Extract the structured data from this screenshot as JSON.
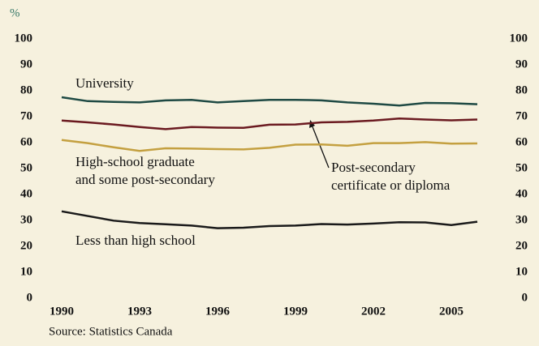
{
  "chart_data": {
    "type": "line",
    "y_label": "%",
    "source": "Source: Statistics Canada",
    "x": [
      1990,
      1991,
      1992,
      1993,
      1994,
      1995,
      1996,
      1997,
      1998,
      1999,
      2000,
      2001,
      2002,
      2003,
      2004,
      2005,
      2006
    ],
    "xlim": [
      1990,
      2006
    ],
    "xticks": [
      1990,
      1993,
      1996,
      1999,
      2002,
      2005
    ],
    "ylim": [
      0,
      100
    ],
    "yticks": [
      0,
      10,
      20,
      30,
      40,
      50,
      60,
      70,
      80,
      90,
      100
    ],
    "y2lim": [
      0,
      100
    ],
    "y2ticks": [
      0,
      10,
      20,
      30,
      40,
      50,
      60,
      70,
      80,
      90,
      100
    ],
    "grid": false,
    "series": [
      {
        "name": "University",
        "color": "#1f4a44",
        "values": [
          77.5,
          76,
          75.7,
          75.5,
          76.3,
          76.5,
          75.5,
          76,
          76.5,
          76.5,
          76.3,
          75.5,
          75,
          74.3,
          75.3,
          75.2,
          74.8
        ]
      },
      {
        "name": "Post-secondary\ncertificate or diploma",
        "color": "#6b1a20",
        "values": [
          68.5,
          67.8,
          67,
          66,
          65.2,
          66,
          65.8,
          65.7,
          66.9,
          67,
          67.8,
          68,
          68.5,
          69.3,
          68.9,
          68.6,
          68.9
        ]
      },
      {
        "name": "High-school graduate\nand some post-secondary",
        "color": "#c4a040",
        "values": [
          61,
          59.8,
          58.2,
          56.8,
          57.8,
          57.7,
          57.5,
          57.4,
          58,
          59.2,
          59.3,
          58.8,
          59.8,
          59.8,
          60.2,
          59.6,
          59.7
        ]
      },
      {
        "name": "Less than high school",
        "color": "#1a1a1a",
        "values": [
          33.5,
          31.7,
          29.9,
          29,
          28.5,
          28,
          27,
          27.2,
          27.8,
          28,
          28.6,
          28.4,
          28.8,
          29.3,
          29.2,
          28.2,
          29.5
        ]
      }
    ]
  }
}
